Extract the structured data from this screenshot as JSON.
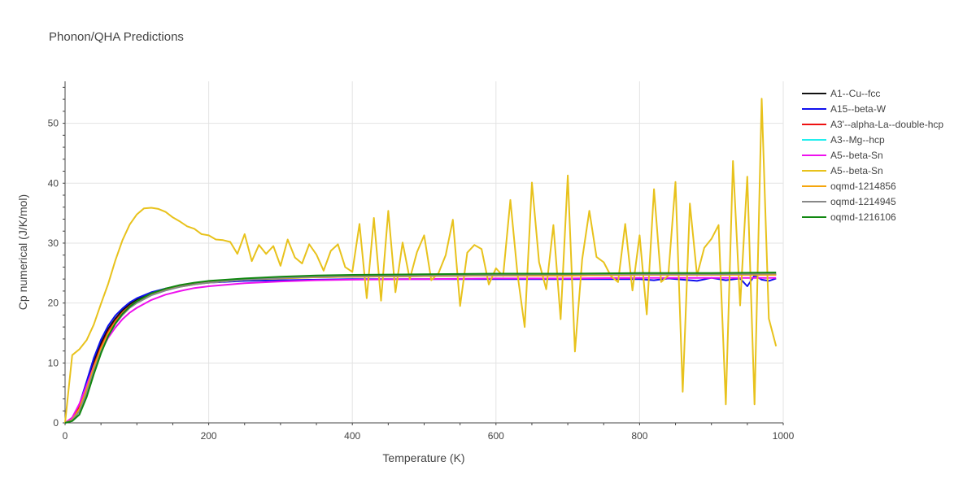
{
  "chart_data": {
    "type": "line",
    "title": "Phonon/QHA Predictions",
    "xlabel": "Temperature (K)",
    "ylabel": "Cp numerical (J/K/mol)",
    "xlim": [
      0,
      1000
    ],
    "ylim": [
      0,
      57
    ],
    "x_ticks": [
      "0",
      "200",
      "400",
      "600",
      "800",
      "1000"
    ],
    "y_ticks": [
      "0",
      "10",
      "20",
      "30",
      "40",
      "50"
    ],
    "grid": true,
    "legend_position": "right",
    "series": [
      {
        "name": "A1--Cu--fcc",
        "color": "#111111",
        "x": [
          0,
          10,
          20,
          30,
          40,
          50,
          60,
          70,
          80,
          90,
          100,
          120,
          140,
          160,
          180,
          200,
          250,
          300,
          350,
          400,
          500,
          600,
          700,
          800,
          900,
          990
        ],
        "y": [
          0,
          0.8,
          3.0,
          6.5,
          10.2,
          13.3,
          15.7,
          17.4,
          18.8,
          19.8,
          20.6,
          21.7,
          22.4,
          22.9,
          23.3,
          23.6,
          24.0,
          24.3,
          24.4,
          24.5,
          24.6,
          24.7,
          24.7,
          24.8,
          24.8,
          24.8
        ]
      },
      {
        "name": "A15--beta-W",
        "color": "#1010ee",
        "x": [
          0,
          10,
          20,
          30,
          40,
          50,
          60,
          70,
          80,
          90,
          100,
          120,
          140,
          160,
          180,
          200,
          250,
          300,
          350,
          400,
          500,
          600,
          700,
          800,
          820,
          840,
          860,
          880,
          900,
          920,
          940,
          950,
          960,
          970,
          980,
          990
        ],
        "y": [
          0,
          0.8,
          3.1,
          6.9,
          10.8,
          13.9,
          16.2,
          17.9,
          19.1,
          20.1,
          20.8,
          21.8,
          22.4,
          22.9,
          23.2,
          23.4,
          23.7,
          23.8,
          23.9,
          24.0,
          24.0,
          24.0,
          24.0,
          24.0,
          23.8,
          24.1,
          23.9,
          23.7,
          24.2,
          23.8,
          24.1,
          22.8,
          24.6,
          23.9,
          23.7,
          24.1
        ]
      },
      {
        "name": "A3'--alpha-La--double-hcp",
        "color": "#ee1111",
        "x": [
          0,
          10,
          20,
          30,
          40,
          50,
          60,
          70,
          80,
          90,
          100,
          120,
          140,
          160,
          180,
          200,
          250,
          300,
          350,
          400,
          500,
          600,
          700,
          800,
          900,
          990
        ],
        "y": [
          0,
          0.7,
          2.6,
          6.0,
          9.6,
          12.7,
          15.2,
          17.0,
          18.4,
          19.5,
          20.3,
          21.5,
          22.3,
          22.8,
          23.2,
          23.5,
          23.9,
          24.2,
          24.3,
          24.4,
          24.5,
          24.6,
          24.6,
          24.7,
          24.7,
          24.7
        ]
      },
      {
        "name": "A3--Mg--hcp",
        "color": "#22eeee",
        "x": [
          0,
          10,
          20,
          30,
          40,
          50,
          60,
          70,
          80,
          90,
          100,
          120,
          140,
          160,
          180,
          200,
          250,
          300,
          350,
          400,
          500,
          600,
          700,
          800,
          900,
          990
        ],
        "y": [
          0,
          0.5,
          2.2,
          5.4,
          9.0,
          12.2,
          14.8,
          16.7,
          18.2,
          19.3,
          20.1,
          21.3,
          22.1,
          22.7,
          23.1,
          23.4,
          23.9,
          24.1,
          24.3,
          24.4,
          24.5,
          24.6,
          24.7,
          24.7,
          24.7,
          24.8
        ]
      },
      {
        "name": "A5--beta-Sn",
        "color": "#ee11ee",
        "x": [
          0,
          10,
          20,
          30,
          40,
          50,
          60,
          70,
          80,
          90,
          100,
          120,
          140,
          160,
          180,
          200,
          250,
          300,
          350,
          400,
          500,
          600,
          700,
          800,
          900,
          990
        ],
        "y": [
          0,
          0.9,
          3.2,
          6.3,
          9.4,
          12.0,
          14.2,
          15.9,
          17.3,
          18.4,
          19.2,
          20.5,
          21.4,
          22.0,
          22.5,
          22.8,
          23.3,
          23.6,
          23.8,
          23.9,
          24.0,
          24.1,
          24.1,
          24.2,
          24.2,
          24.2
        ]
      },
      {
        "name": "A5--beta-Sn",
        "color": "#e8c21c",
        "x": [
          0,
          10,
          20,
          30,
          40,
          50,
          60,
          70,
          80,
          90,
          100,
          110,
          120,
          130,
          140,
          150,
          160,
          170,
          180,
          190,
          200,
          210,
          220,
          230,
          240,
          250,
          260,
          270,
          280,
          290,
          300,
          310,
          320,
          330,
          340,
          350,
          360,
          370,
          380,
          390,
          400,
          410,
          420,
          430,
          440,
          450,
          460,
          470,
          480,
          490,
          500,
          510,
          520,
          530,
          540,
          550,
          560,
          570,
          580,
          590,
          600,
          610,
          620,
          630,
          640,
          650,
          660,
          670,
          680,
          690,
          700,
          710,
          720,
          730,
          740,
          750,
          760,
          770,
          780,
          790,
          800,
          810,
          820,
          830,
          840,
          850,
          860,
          870,
          880,
          890,
          900,
          910,
          920,
          930,
          940,
          950,
          960,
          970,
          980,
          990
        ],
        "y": [
          0,
          11.3,
          12.3,
          13.8,
          16.4,
          19.9,
          23.2,
          27.1,
          30.5,
          33.1,
          34.8,
          35.8,
          35.9,
          35.7,
          35.2,
          34.3,
          33.6,
          32.8,
          32.4,
          31.5,
          31.3,
          30.6,
          30.5,
          30.2,
          28.2,
          31.5,
          27.0,
          29.7,
          28.2,
          29.5,
          26.2,
          30.6,
          27.6,
          26.6,
          29.8,
          28.1,
          25.4,
          28.7,
          29.8,
          26.0,
          25.2,
          33.2,
          20.8,
          34.2,
          20.4,
          35.4,
          21.8,
          30.1,
          24.0,
          28.5,
          31.3,
          23.8,
          25.0,
          28.0,
          33.9,
          19.5,
          28.4,
          29.7,
          29.0,
          23.1,
          25.8,
          24.5,
          37.2,
          24.8,
          16.0,
          40.1,
          26.8,
          22.3,
          33.0,
          17.3,
          41.3,
          11.9,
          27.3,
          35.4,
          27.7,
          26.8,
          24.5,
          23.5,
          33.2,
          22.1,
          31.3,
          18.1,
          39.0,
          23.5,
          24.6,
          40.2,
          5.2,
          36.6,
          24.6,
          29.2,
          30.7,
          33.0,
          3.1,
          43.7,
          19.6,
          41.1,
          3.1,
          54.1,
          17.4,
          12.8
        ]
      },
      {
        "name": "oqmd-1214856",
        "color": "#f5a60d",
        "x": [
          0,
          10,
          20,
          30,
          40,
          50,
          60,
          70,
          80,
          90,
          100,
          120,
          140,
          160,
          180,
          200,
          250,
          300,
          350,
          400,
          500,
          600,
          700,
          800,
          900,
          990
        ],
        "y": [
          0,
          0.5,
          2.3,
          5.6,
          9.2,
          12.4,
          14.9,
          16.8,
          18.3,
          19.4,
          20.2,
          21.4,
          22.2,
          22.7,
          23.1,
          23.4,
          23.9,
          24.1,
          24.3,
          24.4,
          24.5,
          24.6,
          24.6,
          24.7,
          24.7,
          24.7
        ]
      },
      {
        "name": "oqmd-1214945",
        "color": "#888888",
        "x": [
          0,
          10,
          20,
          30,
          40,
          50,
          60,
          70,
          80,
          90,
          100,
          120,
          140,
          160,
          180,
          200,
          250,
          300,
          350,
          400,
          500,
          600,
          700,
          800,
          900,
          990
        ],
        "y": [
          0,
          0.4,
          1.9,
          5.0,
          8.6,
          11.9,
          14.5,
          16.5,
          18.0,
          19.2,
          20.0,
          21.3,
          22.1,
          22.7,
          23.1,
          23.4,
          23.9,
          24.2,
          24.4,
          24.5,
          24.6,
          24.7,
          24.8,
          24.8,
          24.8,
          24.9
        ]
      },
      {
        "name": "oqmd-1216106",
        "color": "#118811",
        "x": [
          0,
          10,
          20,
          30,
          40,
          50,
          60,
          70,
          80,
          90,
          100,
          120,
          140,
          160,
          180,
          200,
          250,
          300,
          350,
          400,
          500,
          600,
          700,
          800,
          900,
          990
        ],
        "y": [
          0,
          0.3,
          1.4,
          4.3,
          8.1,
          11.6,
          14.5,
          16.6,
          18.2,
          19.4,
          20.3,
          21.6,
          22.4,
          23.0,
          23.4,
          23.7,
          24.1,
          24.4,
          24.6,
          24.7,
          24.8,
          24.9,
          24.9,
          25.0,
          25.0,
          25.1
        ]
      }
    ]
  }
}
